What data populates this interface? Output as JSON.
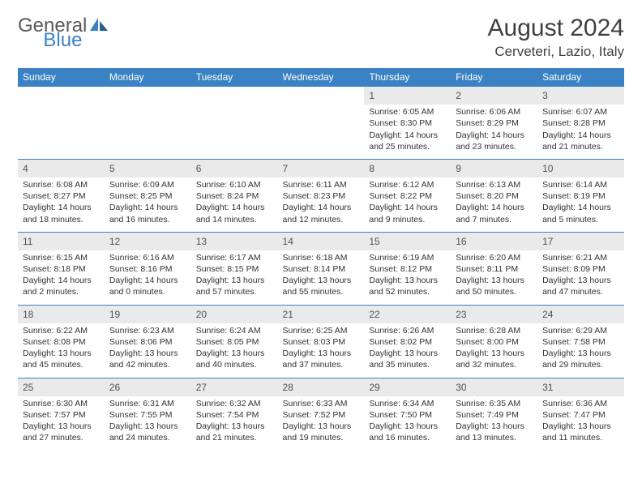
{
  "logo": {
    "text1": "General",
    "text2": "Blue"
  },
  "title": "August 2024",
  "location": "Cerveteri, Lazio, Italy",
  "colors": {
    "header_bg": "#3b82c4",
    "header_text": "#ffffff",
    "daynum_bg": "#eaeaea",
    "border": "#3b82c4",
    "text": "#333333"
  },
  "weekdays": [
    "Sunday",
    "Monday",
    "Tuesday",
    "Wednesday",
    "Thursday",
    "Friday",
    "Saturday"
  ],
  "weeks": [
    [
      null,
      null,
      null,
      null,
      {
        "n": "1",
        "sr": "6:05 AM",
        "ss": "8:30 PM",
        "dl": "14 hours and 25 minutes."
      },
      {
        "n": "2",
        "sr": "6:06 AM",
        "ss": "8:29 PM",
        "dl": "14 hours and 23 minutes."
      },
      {
        "n": "3",
        "sr": "6:07 AM",
        "ss": "8:28 PM",
        "dl": "14 hours and 21 minutes."
      }
    ],
    [
      {
        "n": "4",
        "sr": "6:08 AM",
        "ss": "8:27 PM",
        "dl": "14 hours and 18 minutes."
      },
      {
        "n": "5",
        "sr": "6:09 AM",
        "ss": "8:25 PM",
        "dl": "14 hours and 16 minutes."
      },
      {
        "n": "6",
        "sr": "6:10 AM",
        "ss": "8:24 PM",
        "dl": "14 hours and 14 minutes."
      },
      {
        "n": "7",
        "sr": "6:11 AM",
        "ss": "8:23 PM",
        "dl": "14 hours and 12 minutes."
      },
      {
        "n": "8",
        "sr": "6:12 AM",
        "ss": "8:22 PM",
        "dl": "14 hours and 9 minutes."
      },
      {
        "n": "9",
        "sr": "6:13 AM",
        "ss": "8:20 PM",
        "dl": "14 hours and 7 minutes."
      },
      {
        "n": "10",
        "sr": "6:14 AM",
        "ss": "8:19 PM",
        "dl": "14 hours and 5 minutes."
      }
    ],
    [
      {
        "n": "11",
        "sr": "6:15 AM",
        "ss": "8:18 PM",
        "dl": "14 hours and 2 minutes."
      },
      {
        "n": "12",
        "sr": "6:16 AM",
        "ss": "8:16 PM",
        "dl": "14 hours and 0 minutes."
      },
      {
        "n": "13",
        "sr": "6:17 AM",
        "ss": "8:15 PM",
        "dl": "13 hours and 57 minutes."
      },
      {
        "n": "14",
        "sr": "6:18 AM",
        "ss": "8:14 PM",
        "dl": "13 hours and 55 minutes."
      },
      {
        "n": "15",
        "sr": "6:19 AM",
        "ss": "8:12 PM",
        "dl": "13 hours and 52 minutes."
      },
      {
        "n": "16",
        "sr": "6:20 AM",
        "ss": "8:11 PM",
        "dl": "13 hours and 50 minutes."
      },
      {
        "n": "17",
        "sr": "6:21 AM",
        "ss": "8:09 PM",
        "dl": "13 hours and 47 minutes."
      }
    ],
    [
      {
        "n": "18",
        "sr": "6:22 AM",
        "ss": "8:08 PM",
        "dl": "13 hours and 45 minutes."
      },
      {
        "n": "19",
        "sr": "6:23 AM",
        "ss": "8:06 PM",
        "dl": "13 hours and 42 minutes."
      },
      {
        "n": "20",
        "sr": "6:24 AM",
        "ss": "8:05 PM",
        "dl": "13 hours and 40 minutes."
      },
      {
        "n": "21",
        "sr": "6:25 AM",
        "ss": "8:03 PM",
        "dl": "13 hours and 37 minutes."
      },
      {
        "n": "22",
        "sr": "6:26 AM",
        "ss": "8:02 PM",
        "dl": "13 hours and 35 minutes."
      },
      {
        "n": "23",
        "sr": "6:28 AM",
        "ss": "8:00 PM",
        "dl": "13 hours and 32 minutes."
      },
      {
        "n": "24",
        "sr": "6:29 AM",
        "ss": "7:58 PM",
        "dl": "13 hours and 29 minutes."
      }
    ],
    [
      {
        "n": "25",
        "sr": "6:30 AM",
        "ss": "7:57 PM",
        "dl": "13 hours and 27 minutes."
      },
      {
        "n": "26",
        "sr": "6:31 AM",
        "ss": "7:55 PM",
        "dl": "13 hours and 24 minutes."
      },
      {
        "n": "27",
        "sr": "6:32 AM",
        "ss": "7:54 PM",
        "dl": "13 hours and 21 minutes."
      },
      {
        "n": "28",
        "sr": "6:33 AM",
        "ss": "7:52 PM",
        "dl": "13 hours and 19 minutes."
      },
      {
        "n": "29",
        "sr": "6:34 AM",
        "ss": "7:50 PM",
        "dl": "13 hours and 16 minutes."
      },
      {
        "n": "30",
        "sr": "6:35 AM",
        "ss": "7:49 PM",
        "dl": "13 hours and 13 minutes."
      },
      {
        "n": "31",
        "sr": "6:36 AM",
        "ss": "7:47 PM",
        "dl": "13 hours and 11 minutes."
      }
    ]
  ],
  "labels": {
    "sunrise": "Sunrise:",
    "sunset": "Sunset:",
    "daylight": "Daylight:"
  }
}
